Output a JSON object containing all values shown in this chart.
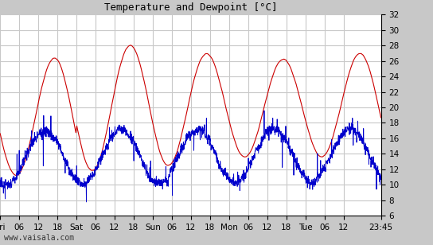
{
  "title": "Temperature and Dewpoint [°C]",
  "ylabel": "",
  "background_color": "#c8c8c8",
  "plot_bg_color": "#ffffff",
  "grid_color": "#c8c8c8",
  "temp_color": "#cc0000",
  "dewpoint_color": "#0000cc",
  "ylim": [
    6,
    32
  ],
  "yticks": [
    6,
    8,
    10,
    12,
    14,
    16,
    18,
    20,
    22,
    24,
    26,
    28,
    30,
    32
  ],
  "xtick_labels": [
    "Fri",
    "06",
    "12",
    "18",
    "Sat",
    "06",
    "12",
    "18",
    "Sun",
    "06",
    "12",
    "18",
    "Mon",
    "06",
    "12",
    "18",
    "Tue",
    "06",
    "12",
    "23:45"
  ],
  "watermark": "www.vaisala.com",
  "line_width": 0.8,
  "n_points": 2000
}
